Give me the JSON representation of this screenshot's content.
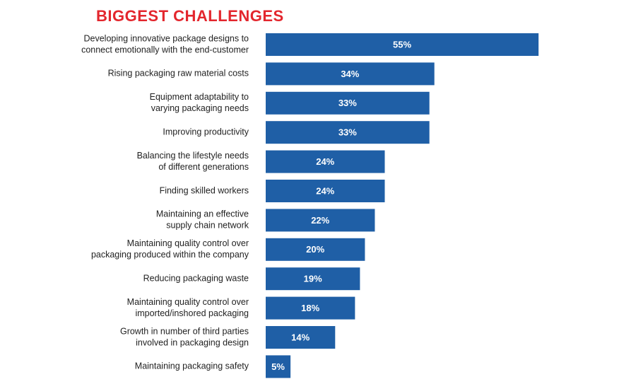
{
  "chart_data": {
    "type": "bar",
    "orientation": "horizontal",
    "title": "BIGGEST CHALLENGES",
    "categories": [
      [
        "Developing innovative package designs to",
        "connect emotionally with the end-customer"
      ],
      [
        "Rising packaging raw material costs"
      ],
      [
        "Equipment adaptability to",
        "varying packaging needs"
      ],
      [
        "Improving productivity"
      ],
      [
        "Balancing the lifestyle needs",
        "of different generations"
      ],
      [
        "Finding skilled workers"
      ],
      [
        "Maintaining an effective",
        "supply chain network"
      ],
      [
        "Maintaining quality control over",
        "packaging produced within the company"
      ],
      [
        "Reducing packaging waste"
      ],
      [
        "Maintaining quality control over",
        "imported/inshored packaging"
      ],
      [
        "Growth in number of third parties",
        "involved in packaging design"
      ],
      [
        "Maintaining packaging safety"
      ]
    ],
    "values": [
      55,
      34,
      33,
      33,
      24,
      24,
      22,
      20,
      19,
      18,
      14,
      5
    ],
    "value_labels": [
      "55%",
      "34%",
      "33%",
      "33%",
      "24%",
      "24%",
      "22%",
      "20%",
      "19%",
      "18%",
      "14%",
      "5%"
    ],
    "color": "#1f5fa6",
    "title_color": "#e3262d"
  }
}
